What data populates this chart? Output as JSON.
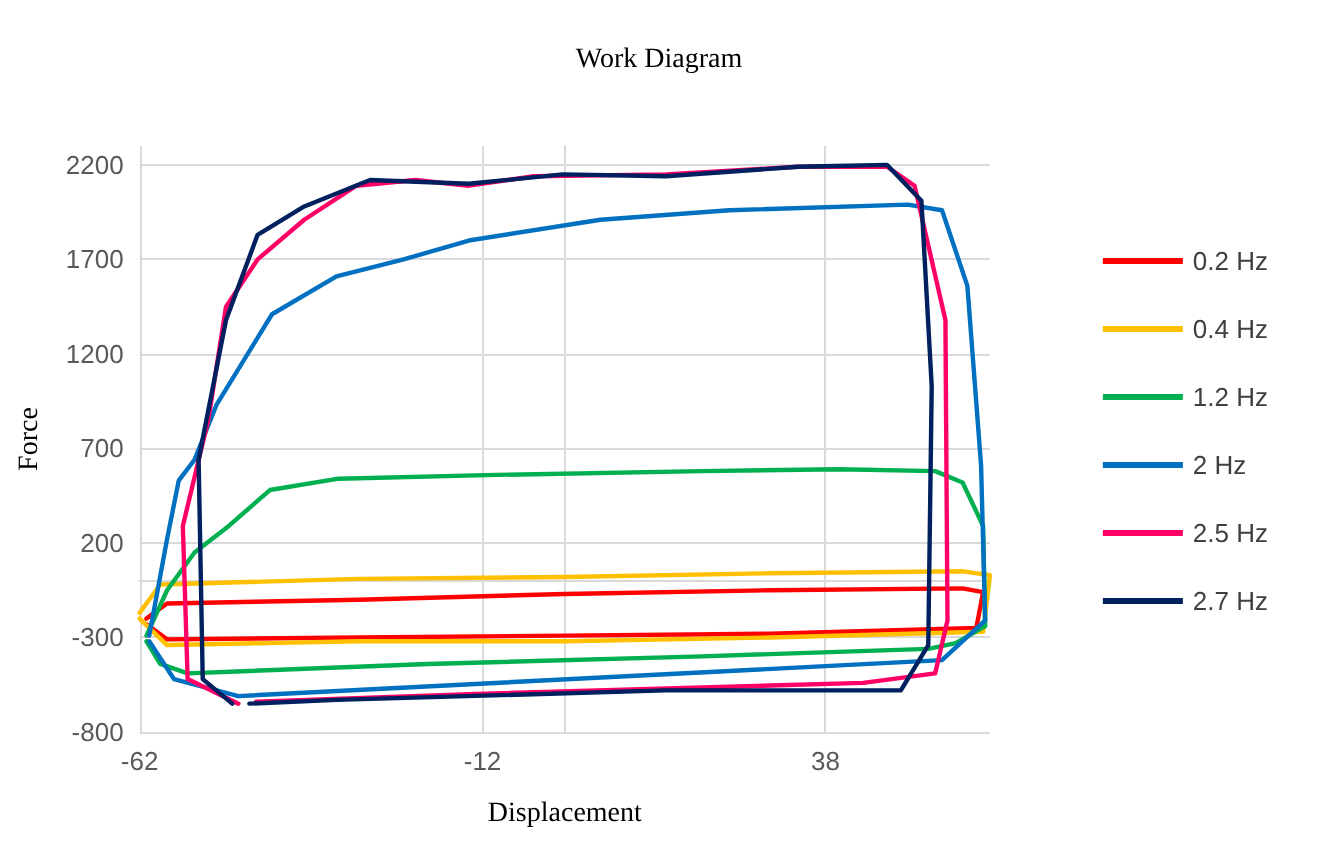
{
  "chart_data": {
    "type": "line",
    "title": "Work Diagram",
    "xlabel": "Displacement",
    "ylabel": "Force",
    "xlim": [
      -62,
      62
    ],
    "xticks": [
      -62,
      -12,
      38
    ],
    "ylim": [
      -800,
      2300
    ],
    "yticks": [
      -800,
      -300,
      200,
      700,
      1200,
      1700,
      2200
    ],
    "grid": true,
    "legend": "right",
    "marker": "none",
    "line_style": "solid",
    "series": [
      {
        "name": "0.2 Hz",
        "color": "#ff0000",
        "x": [
          -61,
          -58,
          -30,
          0,
          30,
          58,
          61,
          60,
          30,
          0,
          -30,
          -58,
          -61
        ],
        "values": [
          -200,
          -120,
          -100,
          -70,
          -50,
          -40,
          -60,
          -250,
          -280,
          -290,
          -300,
          -310,
          -230
        ]
      },
      {
        "name": "0.4 Hz",
        "color": "#ffc000",
        "x": [
          -62,
          -59,
          -30,
          0,
          30,
          58,
          62,
          61,
          30,
          0,
          -30,
          -58,
          -62
        ],
        "values": [
          -170,
          -20,
          10,
          20,
          40,
          50,
          30,
          -270,
          -300,
          -320,
          -320,
          -340,
          -200
        ]
      },
      {
        "name": "1.2 Hz",
        "color": "#00b050",
        "x": [
          -61,
          -58,
          -54,
          -49,
          -43,
          -33,
          -10,
          20,
          40,
          54,
          58,
          61,
          61.3,
          57,
          53,
          20,
          -20,
          -55,
          -59,
          -61
        ],
        "values": [
          -290,
          -50,
          150,
          290,
          480,
          540,
          560,
          580,
          590,
          580,
          520,
          290,
          -240,
          -330,
          -360,
          -400,
          -440,
          -490,
          -440,
          -320
        ]
      },
      {
        "name": "2 Hz",
        "color": "#0070c0",
        "x": [
          -60.6,
          -58,
          -56.3,
          -54,
          -50.8,
          -42.7,
          -33.3,
          -23.5,
          -14,
          5.2,
          24,
          50,
          55,
          58.7,
          60.7,
          61.3,
          55,
          -47.6,
          -57,
          -60.6
        ],
        "values": [
          -290,
          220,
          530,
          640,
          930,
          1410,
          1610,
          1700,
          1800,
          1910,
          1960,
          1990,
          1960,
          1560,
          610,
          -210,
          -420,
          -610,
          -520,
          -320
        ]
      },
      {
        "name": "2.5 Hz",
        "color": "#ff0066",
        "x": [
          -47.6,
          -55,
          -55.7,
          -52,
          -49.4,
          -44.8,
          -38,
          -30.4,
          -21.8,
          -14,
          -4.5,
          14.7,
          34,
          47,
          51,
          55.5,
          55.8,
          54,
          43.5,
          -14,
          -45
        ],
        "values": [
          -650,
          -520,
          290,
          850,
          1450,
          1700,
          1910,
          2090,
          2120,
          2090,
          2140,
          2150,
          2190,
          2190,
          2090,
          1380,
          -210,
          -490,
          -540,
          -600,
          -640
        ]
      },
      {
        "name": "2.7 Hz",
        "color": "#002060",
        "x": [
          -48.5,
          -52.8,
          -53.4,
          -49.4,
          -44.8,
          -38,
          -28.4,
          -14,
          -0.3,
          14.7,
          34,
          47,
          52,
          53.5,
          53,
          49,
          14.7,
          -33.3,
          -46
        ],
        "values": [
          -650,
          -520,
          640,
          1380,
          1830,
          1980,
          2120,
          2100,
          2150,
          2140,
          2190,
          2200,
          2010,
          1030,
          -340,
          -580,
          -580,
          -630,
          -650
        ]
      }
    ]
  }
}
